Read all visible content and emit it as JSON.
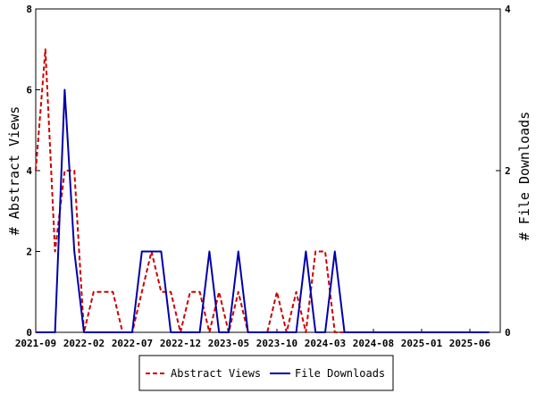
{
  "chart_data": {
    "type": "line",
    "x_ticks": [
      "2021-09",
      "2022-02",
      "2022-07",
      "2022-12",
      "2023-05",
      "2023-10",
      "2024-03",
      "2024-08",
      "2025-01",
      "2025-06"
    ],
    "y_left": {
      "label": "# Abstract Views",
      "ylim": [
        0,
        8
      ],
      "ticks": [
        "0",
        "2",
        "4",
        "6",
        "8"
      ]
    },
    "y_right": {
      "label": "# File Downloads",
      "ylim": [
        0,
        4
      ],
      "ticks": [
        "0",
        "2",
        "4"
      ]
    },
    "grid": false,
    "legend_position": "bottom",
    "series": [
      {
        "name": "Abstract Views",
        "axis": "left",
        "color": "#cc0000",
        "style": "dashed",
        "x": [
          "2021-09",
          "2021-10",
          "2021-11",
          "2021-12",
          "2022-01",
          "2022-02",
          "2022-03",
          "2022-04",
          "2022-05",
          "2022-06",
          "2022-07",
          "2022-08",
          "2022-09",
          "2022-10",
          "2022-11",
          "2022-12",
          "2023-01",
          "2023-02",
          "2023-03",
          "2023-04",
          "2023-05",
          "2023-06",
          "2023-07",
          "2023-08",
          "2023-09",
          "2023-10",
          "2023-11",
          "2023-12",
          "2024-01",
          "2024-02",
          "2024-03",
          "2024-04",
          "2024-05",
          "2024-06",
          "2024-07",
          "2024-08",
          "2024-09",
          "2024-10",
          "2024-11",
          "2024-12",
          "2025-01",
          "2025-02",
          "2025-03",
          "2025-04",
          "2025-05",
          "2025-06",
          "2025-07",
          "2025-08"
        ],
        "values": [
          4,
          7,
          2,
          4,
          4,
          0,
          1,
          1,
          1,
          0,
          0,
          1,
          2,
          1,
          1,
          0,
          1,
          1,
          0,
          1,
          0,
          1,
          0,
          0,
          0,
          1,
          0,
          1,
          0,
          2,
          2,
          0,
          0,
          0,
          0,
          0,
          0,
          0,
          0,
          0,
          0,
          0,
          0,
          0,
          0,
          0,
          0,
          0
        ]
      },
      {
        "name": "File Downloads",
        "axis": "right",
        "color": "#0000aa",
        "style": "solid",
        "x": [
          "2021-09",
          "2021-10",
          "2021-11",
          "2021-12",
          "2022-01",
          "2022-02",
          "2022-03",
          "2022-04",
          "2022-05",
          "2022-06",
          "2022-07",
          "2022-08",
          "2022-09",
          "2022-10",
          "2022-11",
          "2022-12",
          "2023-01",
          "2023-02",
          "2023-03",
          "2023-04",
          "2023-05",
          "2023-06",
          "2023-07",
          "2023-08",
          "2023-09",
          "2023-10",
          "2023-11",
          "2023-12",
          "2024-01",
          "2024-02",
          "2024-03",
          "2024-04",
          "2024-05",
          "2024-06",
          "2024-07",
          "2024-08",
          "2024-09",
          "2024-10",
          "2024-11",
          "2024-12",
          "2025-01",
          "2025-02",
          "2025-03",
          "2025-04",
          "2025-05",
          "2025-06",
          "2025-07",
          "2025-08"
        ],
        "values": [
          0,
          0,
          0,
          3,
          1,
          0,
          0,
          0,
          0,
          0,
          0,
          1,
          1,
          1,
          0,
          0,
          0,
          0,
          1,
          0,
          0,
          1,
          0,
          0,
          0,
          0,
          0,
          0,
          1,
          0,
          0,
          1,
          0,
          0,
          0,
          0,
          0,
          0,
          0,
          0,
          0,
          0,
          0,
          0,
          0,
          0,
          0,
          0
        ]
      }
    ]
  }
}
